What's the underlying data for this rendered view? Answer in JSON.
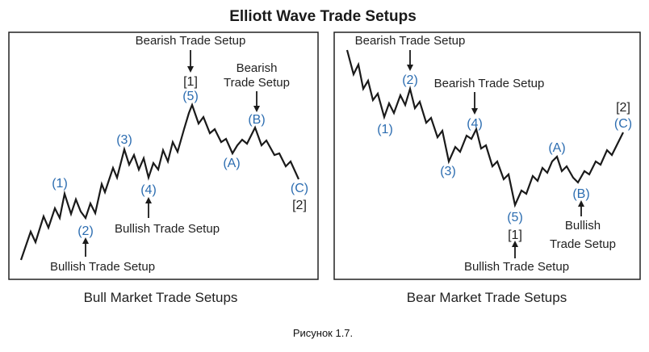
{
  "title": "Elliott Wave Trade Setups",
  "caption": "Рисунок 1.7.",
  "colors": {
    "wave_label": "#2b6cb0",
    "line": "#1a1a1a",
    "frame": "#222222",
    "text": "#222222"
  },
  "left_panel": {
    "title": "Bull Market Trade Setups",
    "wave_labels": [
      "(1)",
      "(2)",
      "(3)",
      "(4)",
      "(5)",
      "(A)",
      "(B)",
      "(C)"
    ],
    "degree_labels": [
      "[1]",
      "[2]"
    ],
    "setups": {
      "bearish_top": "Bearish Trade Setup",
      "bearish_b_line1": "Bearish",
      "bearish_b_line2": "Trade Setup",
      "bullish_4": "Bullish Trade Setup",
      "bullish_2": "Bullish Trade Setup"
    }
  },
  "right_panel": {
    "title": "Bear Market Trade Setups",
    "wave_labels": [
      "(1)",
      "(2)",
      "(3)",
      "(4)",
      "(5)",
      "(A)",
      "(B)",
      "(C)"
    ],
    "degree_labels": [
      "[1]",
      "[2]"
    ],
    "setups": {
      "bearish_2": "Bearish Trade Setup",
      "bearish_4": "Bearish Trade Setup",
      "bullish_b_line1": "Bullish",
      "bullish_b_line2": "Trade Setup",
      "bullish_5": "Bullish Trade Setup"
    }
  }
}
